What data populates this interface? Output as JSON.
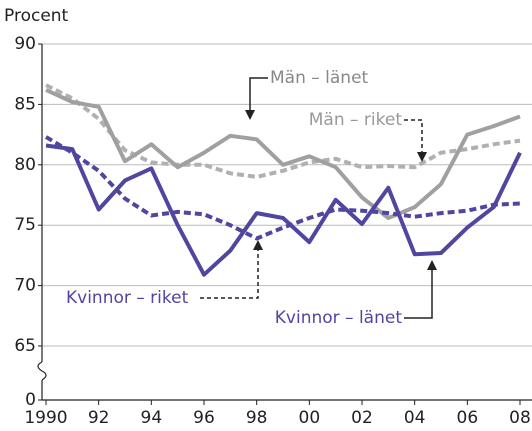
{
  "chart_data": {
    "type": "line",
    "y_label": "Procent",
    "x": [
      1990,
      1991,
      1992,
      1993,
      1994,
      1995,
      1996,
      1997,
      1998,
      1999,
      2000,
      2001,
      2002,
      2003,
      2004,
      2005,
      2006,
      2007,
      2008
    ],
    "series": [
      {
        "name": "Män – länet",
        "color": "#a0a0a0",
        "dashed": false,
        "values": [
          86.2,
          85.2,
          84.8,
          80.3,
          81.7,
          79.8,
          81.0,
          82.4,
          82.1,
          80.0,
          80.7,
          79.8,
          77.3,
          75.6,
          76.5,
          78.4,
          82.5,
          83.2,
          84.0
        ]
      },
      {
        "name": "Män – riket",
        "color": "#b0b0b0",
        "dashed": true,
        "values": [
          86.6,
          85.5,
          83.8,
          81.2,
          80.2,
          80.0,
          80.0,
          79.3,
          79.0,
          79.5,
          80.2,
          80.5,
          79.8,
          79.9,
          79.8,
          81.0,
          81.3,
          81.7,
          82.0
        ]
      },
      {
        "name": "Kvinnor – länet",
        "color": "#5046a0",
        "dashed": false,
        "values": [
          81.6,
          81.3,
          76.3,
          78.7,
          79.7,
          75.0,
          70.9,
          72.9,
          76.0,
          75.6,
          73.6,
          77.1,
          75.1,
          78.1,
          72.6,
          72.7,
          74.8,
          76.5,
          81.0
        ]
      },
      {
        "name": "Kvinnor – riket",
        "color": "#5046a0",
        "dashed": true,
        "values": [
          82.3,
          81.0,
          79.5,
          77.2,
          75.8,
          76.1,
          75.9,
          75.0,
          73.9,
          74.8,
          75.6,
          76.3,
          76.2,
          76.0,
          75.7,
          76.0,
          76.2,
          76.7,
          76.8
        ]
      }
    ],
    "xlim": [
      1990,
      2008
    ],
    "xticks": [
      1990,
      {
        "value": 1992,
        "label": "92"
      },
      {
        "value": 1994,
        "label": "94"
      },
      {
        "value": 1996,
        "label": "96"
      },
      {
        "value": 1998,
        "label": "98"
      },
      {
        "value": 2000,
        "label": "00"
      },
      {
        "value": 2002,
        "label": "02"
      },
      {
        "value": 2004,
        "label": "04"
      },
      {
        "value": 2006,
        "label": "06"
      },
      {
        "value": 2008,
        "label": "08"
      }
    ],
    "ylim": [
      65,
      90
    ],
    "yticks": [
      0,
      65,
      70,
      75,
      80,
      85,
      90
    ],
    "axis_break": true,
    "grid": true
  }
}
